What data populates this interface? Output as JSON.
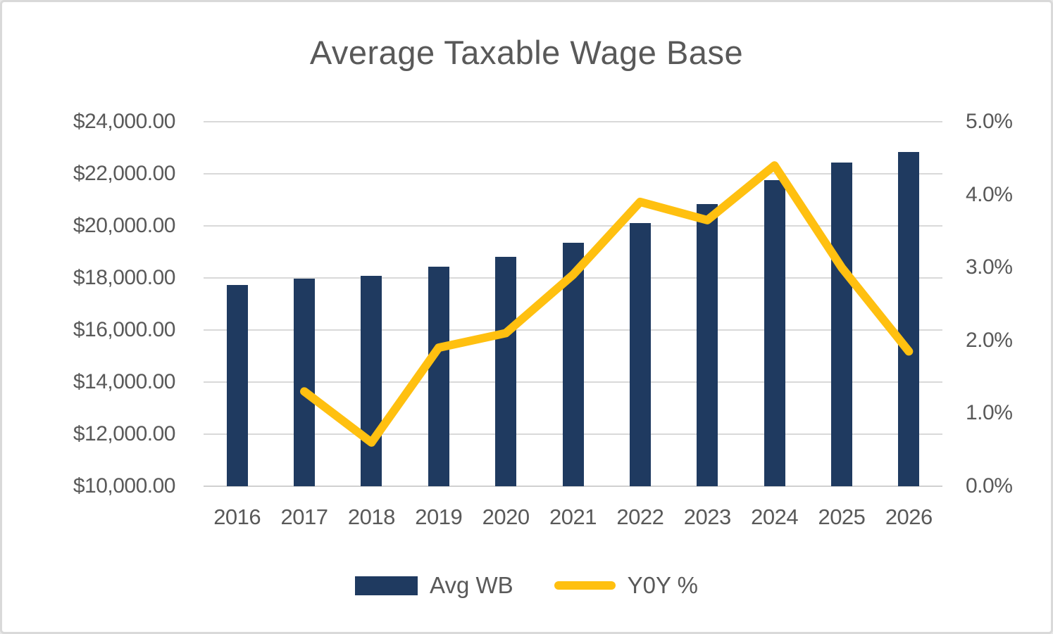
{
  "chart_data": {
    "type": "combo",
    "title": "Average Taxable Wage Base",
    "categories": [
      "2016",
      "2017",
      "2018",
      "2019",
      "2020",
      "2021",
      "2022",
      "2023",
      "2024",
      "2025",
      "2026"
    ],
    "series": [
      {
        "name": "Avg WB",
        "type": "bar",
        "axis": "left",
        "color": "#1F3A60",
        "values": [
          17730,
          17980,
          18080,
          18430,
          18810,
          19350,
          20110,
          20840,
          21770,
          22420,
          22850
        ]
      },
      {
        "name": "Y0Y %",
        "type": "line",
        "axis": "right",
        "color": "#FFC010",
        "values": [
          null,
          1.3,
          0.6,
          1.9,
          2.1,
          2.9,
          3.9,
          3.65,
          4.4,
          3.0,
          1.85
        ]
      }
    ],
    "left_axis": {
      "min": 10000,
      "max": 24000,
      "step": 2000,
      "tick_labels": [
        "$24,000.00",
        "$22,000.00",
        "$20,000.00",
        "$18,000.00",
        "$16,000.00",
        "$14,000.00",
        "$12,000.00",
        "$10,000.00"
      ]
    },
    "right_axis": {
      "min": 0,
      "max": 5,
      "step": 1,
      "tick_labels": [
        "5.0%",
        "4.0%",
        "3.0%",
        "2.0%",
        "1.0%",
        "0.0%"
      ]
    },
    "grid": "horizontal",
    "legend_position": "bottom",
    "legend": [
      {
        "label": "Avg WB",
        "swatch": "bar"
      },
      {
        "label": "Y0Y %",
        "swatch": "line"
      }
    ]
  },
  "colors": {
    "bar": "#1F3A60",
    "line": "#FFC010",
    "text": "#595959",
    "grid": "#D9D9D9",
    "border": "#D9D9D9",
    "background": "#FFFFFF"
  }
}
